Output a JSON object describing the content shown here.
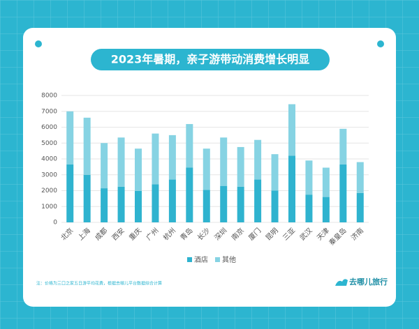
{
  "chart_data": {
    "type": "stacked_bar",
    "title": "2023年暑期，亲子游带动消费增长明显",
    "categories": [
      "北京",
      "上海",
      "成都",
      "西安",
      "重庆",
      "广州",
      "杭州",
      "青岛",
      "长沙",
      "深圳",
      "南京",
      "厦门",
      "昆明",
      "三亚",
      "武汉",
      "天津",
      "秦皇岛",
      "济南"
    ],
    "series": [
      {
        "name": "酒店",
        "color": "#2fb3cf",
        "values": [
          3650,
          3000,
          2150,
          2250,
          1980,
          2400,
          2700,
          3450,
          2050,
          2300,
          2250,
          2700,
          2000,
          4200,
          1750,
          1600,
          3650,
          1850
        ]
      },
      {
        "name": "其他",
        "color": "#86d3e3",
        "values": [
          3350,
          3600,
          2850,
          3100,
          2670,
          3200,
          2800,
          2750,
          2600,
          3050,
          2500,
          2500,
          2300,
          3250,
          2150,
          1850,
          2250,
          1950
        ]
      }
    ],
    "ylim": [
      0,
      8000
    ],
    "yticks": [
      0,
      1000,
      2000,
      3000,
      4000,
      5000,
      6000,
      7000,
      8000
    ],
    "grid": true
  },
  "footnote": "注：价格为三口之家五日游平均花费，根据去哪儿平台数据综合计算",
  "brand": "去哪儿旅行"
}
